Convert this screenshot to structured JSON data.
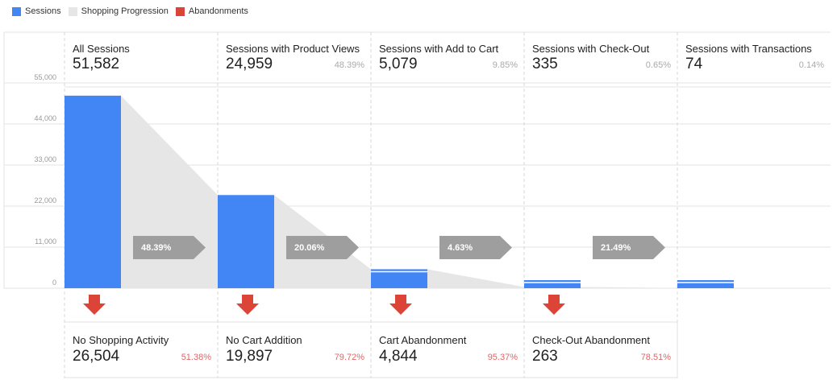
{
  "legend": {
    "sessions": {
      "label": "Sessions",
      "color": "#4285f4"
    },
    "progression": {
      "label": "Shopping Progression",
      "color": "#e6e6e6"
    },
    "abandonments": {
      "label": "Abandonments",
      "color": "#db4437"
    }
  },
  "chart_data": {
    "type": "bar",
    "title": "",
    "xlabel": "",
    "ylabel": "",
    "ylim": [
      0,
      55000
    ],
    "yticks": [
      "55,000",
      "44,000",
      "33,000",
      "22,000",
      "11,000",
      "0"
    ],
    "ytick_values": [
      55000,
      44000,
      33000,
      22000,
      11000,
      0
    ],
    "categories": [
      "All Sessions",
      "Sessions with Product Views",
      "Sessions with Add to Cart",
      "Sessions with Check-Out",
      "Sessions with Transactions"
    ],
    "series": [
      {
        "name": "Sessions",
        "values": [
          51582,
          24959,
          5079,
          335,
          74
        ]
      }
    ],
    "display_values": [
      "51,582",
      "24,959",
      "5,079",
      "335",
      "74"
    ],
    "stage_percent": [
      "",
      "48.39%",
      "9.85%",
      "0.65%",
      "0.14%"
    ],
    "progression_rates": [
      "48.39%",
      "20.06%",
      "4.63%",
      "21.49%"
    ],
    "abandonments": [
      {
        "label": "No Shopping Activity",
        "value": "26,504",
        "percent": "51.38%"
      },
      {
        "label": "No Cart Addition",
        "value": "19,897",
        "percent": "79.72%"
      },
      {
        "label": "Cart Abandonment",
        "value": "4,844",
        "percent": "95.37%"
      },
      {
        "label": "Check-Out Abandonment",
        "value": "263",
        "percent": "78.51%"
      }
    ],
    "grid": true,
    "legend_position": "top-left"
  }
}
